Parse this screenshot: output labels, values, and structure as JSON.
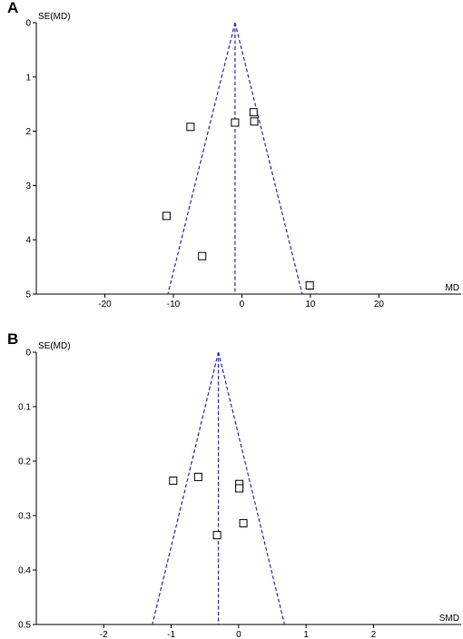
{
  "chart_data": [
    {
      "type": "scatter",
      "panel_label": "A",
      "xlabel": "MD",
      "ylabel": "SE(MD)",
      "y_inverted": true,
      "xlim": [
        -30,
        32
      ],
      "ylim": [
        0,
        5
      ],
      "x_ticks": [
        -20,
        -10,
        0,
        10,
        20
      ],
      "y_ticks": [
        0,
        1,
        2,
        3,
        4,
        5
      ],
      "funnel": {
        "apex_x": -1.0,
        "apex_y": 0,
        "base_y": 5,
        "base_left_x": -10.8,
        "base_right_x": 8.8,
        "pooled_x": -1.0
      },
      "points": [
        {
          "x": -7.5,
          "y": 1.92
        },
        {
          "x": -1.0,
          "y": 1.84
        },
        {
          "x": 1.7,
          "y": 1.65
        },
        {
          "x": 1.8,
          "y": 1.82
        },
        {
          "x": -11.0,
          "y": 3.56
        },
        {
          "x": -5.8,
          "y": 4.3
        },
        {
          "x": 9.9,
          "y": 4.84
        }
      ]
    },
    {
      "type": "scatter",
      "panel_label": "B",
      "xlabel": "SMD",
      "ylabel": "SE(MD)",
      "y_inverted": true,
      "xlim": [
        -3.0,
        3.3
      ],
      "ylim": [
        0,
        0.5
      ],
      "x_ticks": [
        -2,
        -1,
        0,
        1,
        2
      ],
      "y_ticks": [
        0,
        0.1,
        0.2,
        0.3,
        0.4,
        0.5
      ],
      "funnel": {
        "apex_x": -0.3,
        "apex_y": 0,
        "base_y": 0.5,
        "base_left_x": -1.28,
        "base_right_x": 0.68,
        "pooled_x": -0.3
      },
      "points": [
        {
          "x": -0.97,
          "y": 0.236
        },
        {
          "x": -0.6,
          "y": 0.229
        },
        {
          "x": 0.01,
          "y": 0.242
        },
        {
          "x": 0.01,
          "y": 0.25
        },
        {
          "x": 0.07,
          "y": 0.314
        },
        {
          "x": -0.32,
          "y": 0.336
        }
      ]
    }
  ],
  "colors": {
    "funnel": "#2b2bb0",
    "axis": "#000000",
    "marker": "#000000"
  }
}
